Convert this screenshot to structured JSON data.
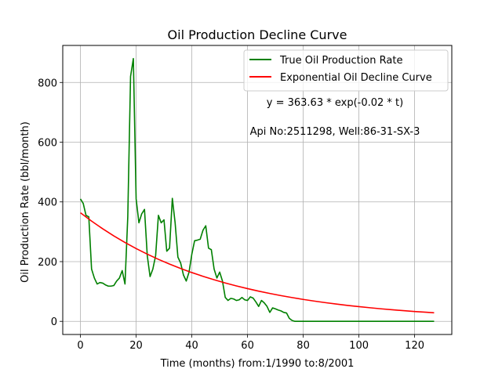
{
  "chart_data": {
    "type": "line",
    "title": "Oil Production Decline Curve",
    "xlabel": "Time (months) from:1/1990 to:8/2001",
    "ylabel": "Oil Production Rate (bbl/month)",
    "xlim": [
      -6.35,
      133.35
    ],
    "ylim": [
      -44,
      924
    ],
    "xticks": [
      0,
      20,
      40,
      60,
      80,
      100,
      120
    ],
    "yticks": [
      0,
      200,
      400,
      600,
      800
    ],
    "grid": true,
    "legend_position": "top-right",
    "annotations": [
      {
        "text": "y = 363.63 * exp(-0.02 * t)"
      },
      {
        "text": "Api No:2511298, Well:86-31-SX-3"
      }
    ],
    "series": [
      {
        "name": "True Oil Production Rate",
        "color": "#008000",
        "x": [
          0,
          1,
          2,
          3,
          4,
          5,
          6,
          7,
          8,
          9,
          10,
          11,
          12,
          13,
          14,
          15,
          16,
          17,
          18,
          19,
          20,
          21,
          22,
          23,
          24,
          25,
          26,
          27,
          28,
          29,
          30,
          31,
          32,
          33,
          34,
          35,
          36,
          37,
          38,
          39,
          40,
          41,
          42,
          43,
          44,
          45,
          46,
          47,
          48,
          49,
          50,
          51,
          52,
          53,
          54,
          55,
          56,
          57,
          58,
          59,
          60,
          61,
          62,
          63,
          64,
          65,
          66,
          67,
          68,
          69,
          70,
          71,
          72,
          73,
          74,
          75,
          76,
          77,
          78,
          79,
          80,
          81,
          82,
          83,
          84,
          85,
          86,
          87,
          88,
          89,
          90,
          91,
          92,
          93,
          94,
          95,
          96,
          97,
          98,
          99,
          100,
          101,
          102,
          103,
          104,
          105,
          106,
          107,
          108,
          109,
          110,
          111,
          112,
          113,
          114,
          115,
          116,
          117,
          118,
          119,
          120,
          121,
          122,
          123,
          124,
          125,
          126,
          127
        ],
        "y": [
          410,
          395,
          355,
          350,
          175,
          145,
          125,
          130,
          128,
          122,
          118,
          118,
          120,
          135,
          145,
          170,
          125,
          350,
          820,
          880,
          410,
          330,
          360,
          375,
          220,
          150,
          175,
          220,
          355,
          330,
          340,
          235,
          245,
          412,
          330,
          215,
          195,
          155,
          135,
          165,
          225,
          270,
          272,
          275,
          305,
          320,
          245,
          240,
          175,
          145,
          165,
          135,
          80,
          70,
          77,
          75,
          70,
          72,
          80,
          72,
          70,
          82,
          78,
          65,
          50,
          70,
          62,
          50,
          30,
          45,
          42,
          38,
          35,
          30,
          28,
          10,
          3,
          0,
          0,
          0,
          0,
          0,
          0,
          0,
          0,
          0,
          0,
          0,
          0,
          0,
          0,
          0,
          0,
          0,
          0,
          0,
          0,
          0,
          0,
          0,
          0,
          0,
          0,
          0,
          0,
          0,
          0,
          0,
          0,
          0,
          0,
          0,
          0,
          0,
          0,
          0,
          0,
          0,
          0,
          0,
          0,
          0,
          0,
          0,
          0,
          0,
          0,
          0
        ]
      },
      {
        "name": "Exponential Oil Decline Curve",
        "color": "#ff0000",
        "equation": "y = 363.63 * exp(-0.02 * t)",
        "x": [
          0,
          4,
          8,
          12,
          16,
          20,
          24,
          28,
          32,
          36,
          40,
          44,
          48,
          52,
          56,
          60,
          64,
          68,
          72,
          76,
          80,
          84,
          88,
          92,
          96,
          100,
          104,
          108,
          112,
          116,
          120,
          124,
          127
        ],
        "y": [
          363.63,
          335.7,
          309.9,
          286.1,
          264.1,
          243.8,
          225.0,
          207.7,
          191.8,
          177.0,
          163.4,
          150.9,
          139.3,
          128.6,
          118.7,
          109.6,
          101.1,
          93.4,
          86.2,
          79.6,
          73.4,
          67.8,
          62.6,
          57.8,
          53.3,
          49.2,
          45.5,
          41.9,
          38.7,
          35.8,
          33.0,
          30.5,
          28.6
        ]
      }
    ]
  }
}
